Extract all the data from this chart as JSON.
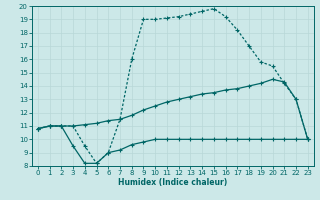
{
  "xlabel": "Humidex (Indice chaleur)",
  "xlim": [
    -0.5,
    23.5
  ],
  "ylim": [
    8,
    20
  ],
  "xticks": [
    0,
    1,
    2,
    3,
    4,
    5,
    6,
    7,
    8,
    9,
    10,
    11,
    12,
    13,
    14,
    15,
    16,
    17,
    18,
    19,
    20,
    21,
    22,
    23
  ],
  "yticks": [
    8,
    9,
    10,
    11,
    12,
    13,
    14,
    15,
    16,
    17,
    18,
    19,
    20
  ],
  "bg_color": "#cce8e8",
  "grid_color": "#aacccc",
  "line_color": "#006666",
  "curve1_x": [
    0,
    1,
    2,
    3,
    4,
    5,
    6,
    7,
    8,
    9,
    10,
    11,
    12,
    13,
    14,
    15,
    16,
    17,
    18,
    19,
    20,
    21,
    22,
    23
  ],
  "curve1_y": [
    10.8,
    11.0,
    11.0,
    9.5,
    8.2,
    8.2,
    9.0,
    9.2,
    9.6,
    9.8,
    10.0,
    10.0,
    10.0,
    10.0,
    10.0,
    10.0,
    10.0,
    10.0,
    10.0,
    10.0,
    10.0,
    10.0,
    10.0,
    10.0
  ],
  "curve2_x": [
    0,
    1,
    2,
    3,
    4,
    5,
    6,
    7,
    8,
    9,
    10,
    11,
    12,
    13,
    14,
    15,
    16,
    17,
    18,
    19,
    20,
    21,
    22,
    23
  ],
  "curve2_y": [
    10.8,
    11.0,
    11.0,
    11.0,
    11.1,
    11.2,
    11.4,
    11.5,
    11.8,
    12.2,
    12.5,
    12.8,
    13.0,
    13.2,
    13.4,
    13.5,
    13.7,
    13.8,
    14.0,
    14.2,
    14.5,
    14.3,
    13.0,
    10.0
  ],
  "curve3_x": [
    0,
    1,
    2,
    3,
    4,
    5,
    6,
    7,
    8,
    9,
    10,
    11,
    12,
    13,
    14,
    15,
    16,
    17,
    18,
    19,
    20,
    21,
    22,
    23
  ],
  "curve3_y": [
    10.8,
    11.0,
    11.0,
    11.0,
    9.5,
    8.2,
    9.0,
    11.5,
    16.0,
    19.0,
    19.0,
    19.1,
    19.2,
    19.4,
    19.6,
    19.8,
    19.2,
    18.2,
    17.0,
    15.8,
    15.5,
    14.2,
    13.0,
    10.0
  ]
}
